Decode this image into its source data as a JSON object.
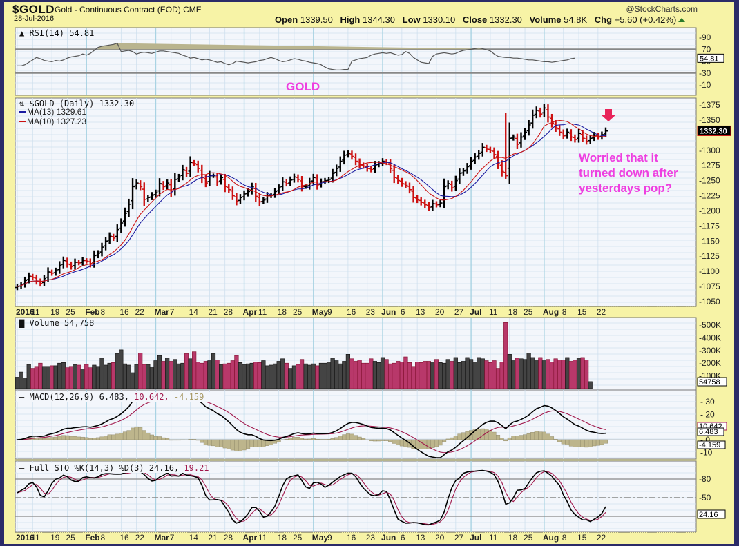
{
  "header": {
    "symbol": "$GOLD",
    "name": "Gold - Continuous Contract (EOD) CME",
    "date": "28-Jul-2016",
    "copyright": "@StockCharts.com",
    "ohlc": {
      "open_label": "Open",
      "open": "1339.50",
      "high_label": "High",
      "high": "1344.30",
      "low_label": "Low",
      "low": "1330.10",
      "close_label": "Close",
      "close": "1332.30",
      "volume_label": "Volume",
      "volume": "54.8K",
      "chg_label": "Chg",
      "chg": "+5.60 (+0.42%)"
    }
  },
  "annotations": {
    "gold_label": "GOLD",
    "comment_line1": "Worried that it",
    "comment_line2": "turned down after",
    "comment_line3": "yesterdays pop?",
    "arrow_color": "#e8245a",
    "text_color": "#ee3fe0"
  },
  "colors": {
    "frame_bg": "#f7f3a6",
    "outer_border": "#2b2b68",
    "plot_bg": "#f3f6fb",
    "grid_minor": "#cfe0ee",
    "grid_major": "#a9d3e3",
    "up_bar": "#000000",
    "down_bar": "#cc1111",
    "ma13": "#1a1aa0",
    "ma10": "#cc1111",
    "vol_up": "#444444",
    "vol_down": "#b8386a",
    "macd_line": "#000000",
    "signal_line": "#a0164a",
    "histogram": "#bdb58c"
  },
  "chart_data": [
    {
      "type": "line",
      "title": "RSI(14) 54.81",
      "panel": "rsi",
      "current_value": "54.81",
      "y_ticks": [
        90,
        70,
        50,
        30,
        10
      ],
      "reference_lines": [
        70,
        50,
        30
      ],
      "ylim": [
        0,
        100
      ],
      "values": [
        42,
        42,
        44,
        48,
        52,
        56,
        54,
        51,
        50,
        49,
        51,
        50,
        52,
        55,
        57,
        58,
        59,
        62,
        60,
        63,
        68,
        73,
        75,
        76,
        77,
        78,
        80,
        66,
        67,
        68,
        66,
        62,
        64,
        65,
        64,
        63,
        65,
        67,
        67,
        66,
        65,
        64,
        63,
        60,
        58,
        55,
        56,
        54,
        52,
        53,
        52,
        50,
        48,
        49,
        46,
        44,
        46,
        50,
        49,
        48,
        47,
        48,
        49,
        51,
        52,
        54,
        56,
        54,
        51,
        49,
        50,
        52,
        54,
        53,
        51,
        50,
        48,
        47,
        46,
        44,
        40,
        37,
        36,
        35,
        35,
        36,
        36,
        50,
        52,
        54,
        55,
        56,
        60,
        62,
        63,
        64,
        63,
        64,
        62,
        60,
        61,
        66,
        63,
        56,
        52,
        48,
        47,
        46,
        58,
        62,
        63,
        64,
        63,
        62,
        63,
        66,
        68,
        69,
        70,
        71,
        72,
        71,
        69,
        67,
        62,
        58,
        57,
        56,
        56,
        55,
        55,
        54,
        53,
        52,
        52,
        51,
        50,
        49,
        49,
        48,
        49,
        50,
        51,
        52,
        54,
        55
      ]
    },
    {
      "type": "ohlc",
      "title": "$GOLD (Daily) 1332.30",
      "panel": "price",
      "legend": [
        {
          "name": "MA(13)",
          "value": "1329.61",
          "color": "#1a1aa0"
        },
        {
          "name": "MA(10)",
          "value": "1327.23",
          "color": "#cc1111"
        }
      ],
      "current_value": "1332.30",
      "y_ticks": [
        1375,
        1350,
        1325,
        1300,
        1275,
        1250,
        1225,
        1200,
        1175,
        1150,
        1125,
        1100,
        1075,
        1050
      ],
      "ylim": [
        1040,
        1390
      ],
      "x_ticks": [
        "2016",
        "11",
        "19",
        "25",
        "Feb",
        "8",
        "16",
        "22",
        "Mar",
        "7",
        "14",
        "21",
        "28",
        "Apr",
        "11",
        "18",
        "25",
        "May",
        "9",
        "16",
        "23",
        "Jun",
        "6",
        "13",
        "20",
        "27",
        "Jul",
        "11",
        "18",
        "25",
        "Aug",
        "8",
        "15",
        "22"
      ],
      "closes": [
        1075,
        1078,
        1085,
        1092,
        1090,
        1084,
        1080,
        1088,
        1099,
        1097,
        1101,
        1110,
        1118,
        1112,
        1108,
        1115,
        1114,
        1118,
        1117,
        1112,
        1126,
        1130,
        1140,
        1150,
        1158,
        1155,
        1169,
        1180,
        1196,
        1211,
        1240,
        1246,
        1240,
        1219,
        1222,
        1226,
        1230,
        1245,
        1240,
        1246,
        1232,
        1252,
        1256,
        1268,
        1262,
        1280,
        1278,
        1270,
        1255,
        1246,
        1258,
        1258,
        1248,
        1255,
        1240,
        1235,
        1225,
        1216,
        1222,
        1228,
        1232,
        1240,
        1224,
        1215,
        1218,
        1225,
        1226,
        1232,
        1238,
        1248,
        1245,
        1251,
        1256,
        1252,
        1240,
        1240,
        1248,
        1255,
        1243,
        1248,
        1250,
        1252,
        1262,
        1270,
        1282,
        1292,
        1295,
        1290,
        1282,
        1276,
        1274,
        1270,
        1268,
        1276,
        1278,
        1282,
        1280,
        1270,
        1255,
        1250,
        1245,
        1242,
        1235,
        1222,
        1218,
        1214,
        1210,
        1205,
        1212,
        1210,
        1213,
        1240,
        1245,
        1238,
        1250,
        1262,
        1266,
        1273,
        1282,
        1289,
        1295,
        1305,
        1302,
        1300,
        1293,
        1278,
        1265,
        1258,
        1320,
        1322,
        1310,
        1322,
        1330,
        1342,
        1358,
        1366,
        1360,
        1370,
        1355,
        1345,
        1337,
        1330,
        1324,
        1330,
        1322,
        1318,
        1328,
        1320,
        1315,
        1320,
        1325,
        1322,
        1326,
        1332
      ]
    },
    {
      "type": "bar",
      "title": "Volume 54,758",
      "panel": "volume",
      "current_value": "54758",
      "y_ticks": [
        "500K",
        "400K",
        "300K",
        "200K",
        "100K"
      ],
      "ylim": [
        0,
        550000
      ],
      "values": [
        90,
        130,
        85,
        190,
        160,
        175,
        200,
        175,
        175,
        180,
        180,
        200,
        205,
        165,
        175,
        190,
        185,
        155,
        190,
        165,
        185,
        175,
        240,
        185,
        200,
        205,
        275,
        305,
        195,
        185,
        125,
        190,
        280,
        190,
        190,
        170,
        220,
        260,
        215,
        240,
        215,
        230,
        195,
        200,
        275,
        235,
        290,
        210,
        200,
        215,
        220,
        275,
        225,
        190,
        195,
        200,
        220,
        260,
        205,
        190,
        195,
        200,
        210,
        205,
        220,
        180,
        185,
        195,
        215,
        235,
        200,
        160,
        180,
        190,
        230,
        195,
        185,
        195,
        180,
        200,
        200,
        210,
        240,
        220,
        195,
        215,
        270,
        235,
        215,
        225,
        200,
        200,
        235,
        215,
        205,
        245,
        230,
        195,
        200,
        215,
        210,
        250,
        205,
        175,
        210,
        205,
        215,
        215,
        210,
        230,
        205,
        200,
        230,
        215,
        245,
        205,
        215,
        245,
        230,
        210,
        245,
        235,
        220,
        205,
        220,
        160,
        210,
        520,
        270,
        220,
        240,
        235,
        230,
        280,
        245,
        225,
        245,
        220,
        230,
        210,
        235,
        225,
        225,
        245,
        215,
        225,
        240,
        245,
        225,
        55
      ]
    },
    {
      "type": "line",
      "title": "MACD(12,26,9) 6.483, 10.642, -4.159",
      "panel": "macd",
      "series": [
        {
          "name": "MACD",
          "value": "6.483"
        },
        {
          "name": "Signal",
          "value": "10.642"
        },
        {
          "name": "Histogram",
          "value": "-4.159"
        }
      ],
      "y_ticks": [
        30,
        20,
        0,
        -10
      ],
      "ylim": [
        -15,
        35
      ]
    },
    {
      "type": "line",
      "title": "Full STO %K(14,3) %D(3) 24.16, 19.21",
      "panel": "sto",
      "series": [
        {
          "name": "%K(14,3)",
          "value": "24.16"
        },
        {
          "name": "%D(3)",
          "value": "19.21"
        }
      ],
      "current_value": "24.16",
      "y_ticks": [
        80,
        50
      ],
      "reference_lines": [
        80,
        50,
        20
      ],
      "ylim": [
        0,
        100
      ]
    }
  ],
  "panels": {
    "rsi_title": "RSI(14) 54.81",
    "rsi_tag": "54.81",
    "price_title": "$GOLD (Daily) 1332.30",
    "ma13_label": "MA(13) 1329.61",
    "ma10_label": "MA(10) 1327.23",
    "price_tag": "1332.30",
    "volume_title": "Volume 54,758",
    "volume_tag": "54758",
    "macd_title_a": "MACD(12,26,9) 6.483,",
    "macd_title_b": " 10.642,",
    "macd_title_c": " -4.159",
    "macd_tag_signal": "10.642",
    "macd_tag_macd": "6.483",
    "macd_tag_hist": "-4.159",
    "sto_title_a": "Full STO %K(14,3) %D(3) 24.16,",
    "sto_title_b": " 19.21",
    "sto_tag": "24.16"
  }
}
